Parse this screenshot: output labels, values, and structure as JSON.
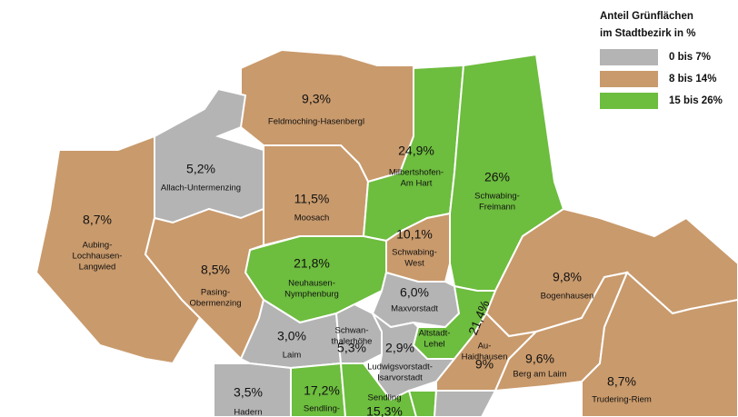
{
  "legend": {
    "title": [
      "Anteil Grünflächen",
      "im Stadtbezirk in %"
    ],
    "items": [
      {
        "label": "0 bis 7%",
        "color": "#b4b4b4"
      },
      {
        "label": "8 bis 14%",
        "color": "#c99a6c"
      },
      {
        "label": "15 bis 26%",
        "color": "#6dbd3e"
      }
    ]
  },
  "districts": [
    {
      "name": [
        "Feldmoching-Hasenbergl"
      ],
      "value": "9,3%",
      "color": "#c99a6c"
    },
    {
      "name": [
        "Allach-Untermenzing"
      ],
      "value": "5,2%",
      "color": "#b4b4b4"
    },
    {
      "name": [
        "Aubing-",
        "Lochhausen-",
        "Langwied"
      ],
      "value": "8,7%",
      "color": "#c99a6c"
    },
    {
      "name": [
        "Moosach"
      ],
      "value": "11,5%",
      "color": "#c99a6c"
    },
    {
      "name": [
        "Milbertshofen-",
        "Am Hart"
      ],
      "value": "24,9%",
      "color": "#6dbd3e"
    },
    {
      "name": [
        "Schwabing-",
        "Freimann"
      ],
      "value": "26%",
      "color": "#6dbd3e"
    },
    {
      "name": [
        "Schwabing-",
        "West"
      ],
      "value": "10,1%",
      "color": "#c99a6c"
    },
    {
      "name": [
        "Neuhausen-",
        "Nymphenburg"
      ],
      "value": "21,8%",
      "color": "#6dbd3e"
    },
    {
      "name": [
        "Pasing-",
        "Obermenzing"
      ],
      "value": "8,5%",
      "color": "#c99a6c"
    },
    {
      "name": [
        "Maxvorstadt"
      ],
      "value": "6,0%",
      "color": "#b4b4b4"
    },
    {
      "name": [
        "Bogenhausen"
      ],
      "value": "9,8%",
      "color": "#c99a6c"
    },
    {
      "name": [
        "Altstadt-",
        "Lehel"
      ],
      "value": "21,4%",
      "color": "#6dbd3e"
    },
    {
      "name": [
        "Laim"
      ],
      "value": "3,0%",
      "color": "#b4b4b4"
    },
    {
      "name": [
        "Schwan-",
        "thalerhöhe"
      ],
      "value": "5,3%",
      "color": "#b4b4b4"
    },
    {
      "name": [
        "Ludwigsvorstadt-",
        "Isarvorstadt"
      ],
      "value": "2,9%",
      "color": "#b4b4b4"
    },
    {
      "name": [
        "Au-",
        "Haidhausen"
      ],
      "value": "9%",
      "color": "#c99a6c"
    },
    {
      "name": [
        "Berg am Laim"
      ],
      "value": "9,6%",
      "color": "#c99a6c"
    },
    {
      "name": [
        "Trudering-Riem"
      ],
      "value": "8,7%",
      "color": "#c99a6c"
    },
    {
      "name": [
        "Hadern"
      ],
      "value": "3,5%",
      "color": "#b4b4b4"
    },
    {
      "name": [
        "Sendling-"
      ],
      "value": "17,2%",
      "color": "#6dbd3e"
    },
    {
      "name": [
        "Sendling"
      ],
      "value": "15,3%",
      "color": "#6dbd3e"
    }
  ]
}
